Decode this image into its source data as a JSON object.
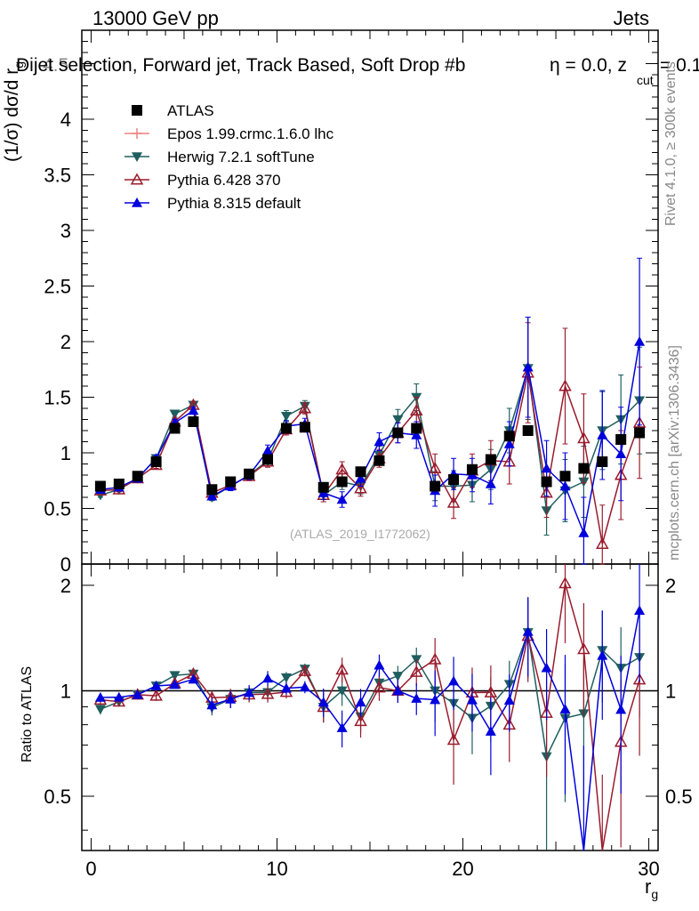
{
  "header": {
    "beam": "13000 GeV pp",
    "process": "Jets",
    "plot_title": "Dijet selection, Forward jet, Track Based, Soft Drop #b",
    "title_overlap": "4.5",
    "eta_text": "η = 0.0, z",
    "zcut_sub": "cut",
    "zcut_value": " = 0.1"
  },
  "side_text": {
    "rivet": "Rivet 4.1.0, ≥ 300k events",
    "mcplots": "mcplots.cern.ch [arXiv:1306.3436]"
  },
  "watermark": "(ATLAS_2019_I1772062)",
  "axes": {
    "main_ylabel_prefix": "(1/σ) dσ/d r",
    "main_ylabel_sub": "g",
    "ratio_ylabel": "Ratio to ATLAS",
    "xlabel": "r",
    "xlabel_sub": "g"
  },
  "chart_data": {
    "type": "scatter",
    "title": "Dijet selection, Forward jet, Track Based, Soft Drop #b η = 0.0, z_cut = 0.1",
    "xlabel": "r_g",
    "ylabel": "(1/σ) dσ/d r_g",
    "xlim": [
      -0.5,
      30.5
    ],
    "ylim": [
      0,
      4.8
    ],
    "ratio_ylim": [
      0.35,
      2.3
    ],
    "ratio_reference": 1,
    "x_ticks": [
      0,
      10,
      20,
      30
    ],
    "x_tick_labels": [
      "0",
      "10",
      "20",
      "30"
    ],
    "y_ticks": [
      0,
      0.5,
      1,
      1.5,
      2,
      2.5,
      3,
      3.5,
      4
    ],
    "y_tick_labels": [
      "0",
      "0.5",
      "1",
      "1.5",
      "2",
      "2.5",
      "3",
      "3.5",
      "4"
    ],
    "ratio_ticks": [
      0.5,
      1,
      2
    ],
    "ratio_tick_labels": [
      "0.5",
      "1",
      "2"
    ],
    "legend_position": "top-left",
    "x": [
      0.5,
      1.5,
      2.5,
      3.5,
      4.5,
      5.5,
      6.5,
      7.5,
      8.5,
      9.5,
      10.5,
      11.5,
      12.5,
      13.5,
      14.5,
      15.5,
      16.5,
      17.5,
      18.5,
      19.5,
      20.5,
      21.5,
      22.5,
      23.5,
      24.5,
      25.5,
      26.5,
      27.5,
      28.5,
      29.5
    ],
    "series": [
      {
        "name": "ATLAS",
        "color": "#000000",
        "marker": "square",
        "values": [
          0.7,
          0.72,
          0.79,
          0.92,
          1.22,
          1.28,
          0.67,
          0.74,
          0.81,
          0.94,
          1.22,
          1.23,
          0.69,
          0.74,
          0.83,
          0.93,
          1.18,
          1.22,
          0.7,
          0.76,
          0.85,
          0.94,
          1.15,
          1.2,
          0.74,
          0.79,
          0.86,
          0.92,
          1.12,
          1.18
        ]
      },
      {
        "name": "Epos 1.99.crmc.1.6.0 lhc",
        "color": "#f08080",
        "marker": "cross",
        "values": []
      },
      {
        "name": "Herwig 7.2.1 softTune",
        "color": "#1f5e5e",
        "marker": "triangle-down",
        "values": [
          0.62,
          0.67,
          0.77,
          0.95,
          1.35,
          1.43,
          0.6,
          0.7,
          0.8,
          0.93,
          1.33,
          1.42,
          0.62,
          0.74,
          0.7,
          0.98,
          1.3,
          1.5,
          0.7,
          0.7,
          0.71,
          0.85,
          1.2,
          1.76,
          0.48,
          0.66,
          0.74,
          1.2,
          1.3,
          1.47
        ]
      },
      {
        "name": "Pythia 6.428 370",
        "color": "#9a1b2c",
        "marker": "triangle-open",
        "values": [
          0.66,
          0.67,
          0.77,
          0.89,
          1.28,
          1.43,
          0.64,
          0.71,
          0.79,
          0.92,
          1.21,
          1.4,
          0.62,
          0.85,
          0.68,
          0.95,
          1.18,
          1.38,
          0.86,
          0.55,
          0.84,
          0.93,
          0.92,
          1.72,
          0.64,
          1.6,
          1.13,
          0.18,
          0.8,
          1.27
        ]
      },
      {
        "name": "Pythia 8.315 default",
        "color": "#0000dd",
        "marker": "triangle-up",
        "values": [
          0.67,
          0.69,
          0.77,
          0.95,
          1.27,
          1.38,
          0.61,
          0.7,
          0.8,
          1.02,
          1.24,
          1.26,
          0.64,
          0.58,
          0.77,
          1.1,
          1.18,
          1.16,
          0.66,
          0.81,
          0.8,
          0.72,
          1.08,
          1.77,
          0.86,
          0.7,
          0.28,
          1.16,
          0.99,
          2.0
        ]
      }
    ],
    "errors": {
      "Herwig 7.2.1 softTune": [
        0.02,
        0.02,
        0.02,
        0.03,
        0.03,
        0.03,
        0.03,
        0.04,
        0.04,
        0.05,
        0.05,
        0.05,
        0.06,
        0.07,
        0.07,
        0.08,
        0.09,
        0.12,
        0.13,
        0.14,
        0.15,
        0.18,
        0.2,
        0.46,
        0.22,
        0.28,
        0.32,
        0.35,
        0.4,
        0.48
      ],
      "Pythia 6.428 370": [
        0.02,
        0.02,
        0.02,
        0.03,
        0.03,
        0.03,
        0.03,
        0.04,
        0.04,
        0.05,
        0.05,
        0.05,
        0.06,
        0.07,
        0.07,
        0.08,
        0.09,
        0.12,
        0.13,
        0.14,
        0.15,
        0.18,
        0.2,
        0.45,
        0.22,
        0.52,
        0.4,
        0.35,
        0.4,
        0.5
      ],
      "Pythia 8.315 default": [
        0.02,
        0.02,
        0.02,
        0.03,
        0.03,
        0.03,
        0.03,
        0.04,
        0.04,
        0.05,
        0.05,
        0.05,
        0.06,
        0.07,
        0.07,
        0.08,
        0.09,
        0.12,
        0.14,
        0.14,
        0.15,
        0.18,
        0.2,
        0.45,
        0.25,
        0.3,
        0.32,
        0.4,
        0.42,
        0.75
      ]
    }
  }
}
